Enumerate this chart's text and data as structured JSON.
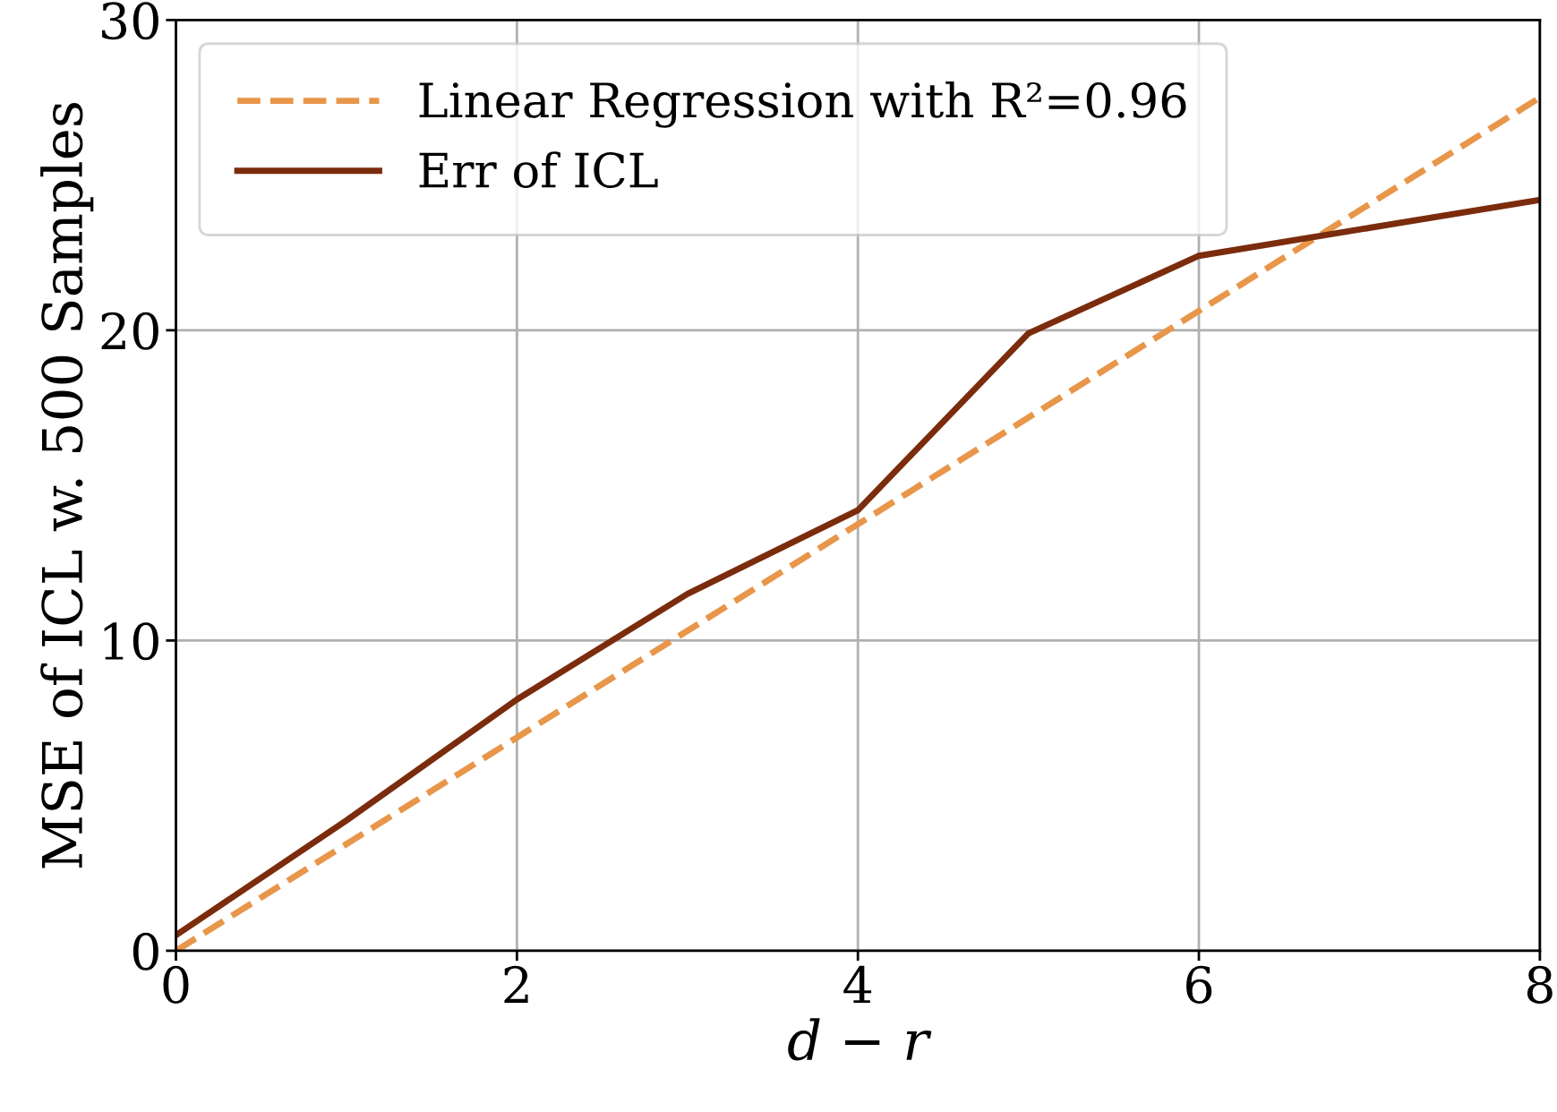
{
  "chart_data": {
    "type": "line",
    "xlabel": "d − r",
    "ylabel": "MSE of ICL w. 500 Samples",
    "series": [
      {
        "name": "Linear Regression with R²=0.96",
        "color": "#e8964a",
        "x": [
          0,
          8
        ],
        "values": [
          0,
          27.5
        ],
        "line_style": "dashed"
      },
      {
        "name": "Err of ICL",
        "color": "#7b2c0c",
        "x": [
          0,
          1,
          2,
          3,
          4,
          5,
          6,
          7,
          8
        ],
        "values": [
          0.5,
          4.2,
          8.1,
          11.5,
          14.2,
          19.9,
          22.4,
          23.3,
          24.2
        ],
        "line_style": "solid"
      }
    ],
    "xlim": [
      0,
      8
    ],
    "xticks": [
      0,
      2,
      4,
      6,
      8
    ],
    "ylim": [
      0,
      30
    ],
    "yticks": [
      0,
      10,
      20,
      30
    ],
    "grid": true,
    "legend": "top left",
    "marker": "none"
  }
}
